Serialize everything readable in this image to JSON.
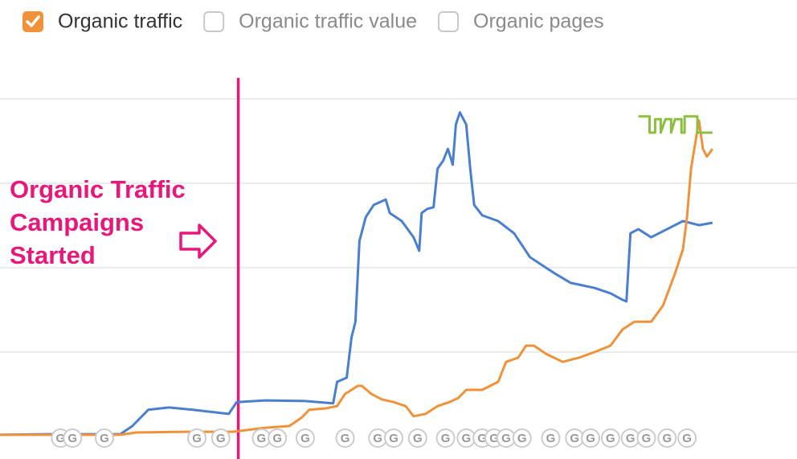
{
  "chart_data": {
    "type": "line",
    "legend": {
      "items": [
        {
          "label": "Organic traffic",
          "checked": true,
          "color": "#f0923a"
        },
        {
          "label": "Organic traffic value",
          "checked": false,
          "color": "#f0923a"
        },
        {
          "label": "Organic pages",
          "checked": false,
          "color": "#f0923a"
        }
      ]
    },
    "xlim": [
      0,
      100
    ],
    "ylim": [
      0,
      100
    ],
    "yticks": [
      25,
      50,
      75,
      100
    ],
    "grid": true,
    "series": [
      {
        "color": "#4a7fcf",
        "x": [
          0,
          6.0,
          15.1,
          16.6,
          18.6,
          21.2,
          24.2,
          28.7,
          29.7,
          33.3,
          38.3,
          41.8,
          42.3,
          43.5,
          44.1,
          44.6,
          45.1,
          45.9,
          46.9,
          48.4,
          48.9,
          50.4,
          51.9,
          52.6,
          52.9,
          53.6,
          54.4,
          54.9,
          55.6,
          56.2,
          56.8,
          57.2,
          57.7,
          58.5,
          59.0,
          59.5,
          60.5,
          62.5,
          64.5,
          66.5,
          69.6,
          71.6,
          74.6,
          76.6,
          78.1,
          78.6,
          79.1,
          80.1,
          81.7,
          83.7,
          85.7,
          87.7,
          89.4
        ],
        "values": [
          0.5,
          0.7,
          0.7,
          3.1,
          7.9,
          8.6,
          7.9,
          6.7,
          10.2,
          10.7,
          10.5,
          9.8,
          16.2,
          17.4,
          29.3,
          34.0,
          57.9,
          65.0,
          68.6,
          70.2,
          66.2,
          63.8,
          59.0,
          55.0,
          66.2,
          67.4,
          67.9,
          79.3,
          81.7,
          85.2,
          80.5,
          92.4,
          96.0,
          92.4,
          79.3,
          68.6,
          65.5,
          63.8,
          60.2,
          53.1,
          48.3,
          45.5,
          44.0,
          42.4,
          40.5,
          40.0,
          60.2,
          61.4,
          59.0,
          61.4,
          63.8,
          62.6,
          63.3
        ]
      },
      {
        "name": "Organic traffic",
        "color": "#f0923a",
        "x": [
          0,
          15.1,
          17.1,
          23.2,
          29.2,
          33.3,
          36.3,
          37.8,
          38.8,
          40.8,
          42.3,
          43.3,
          44.9,
          45.4,
          46.6,
          47.9,
          49.4,
          50.9,
          51.9,
          53.4,
          54.9,
          56.4,
          57.5,
          58.5,
          60.5,
          62.5,
          63.5,
          65.0,
          66.0,
          67.0,
          68.5,
          70.6,
          72.6,
          74.6,
          76.6,
          78.1,
          79.6,
          81.7,
          83.2,
          84.7,
          85.7,
          86.2,
          86.7,
          87.2,
          87.7,
          88.2,
          88.7,
          89.4
        ],
        "values": [
          0.5,
          0.5,
          1.2,
          1.4,
          1.4,
          2.6,
          3.1,
          5.5,
          7.9,
          8.3,
          9.0,
          12.6,
          15.0,
          15.0,
          12.6,
          11.0,
          10.2,
          9.0,
          6.0,
          6.7,
          9.0,
          10.2,
          11.4,
          13.8,
          13.8,
          16.2,
          22.1,
          23.3,
          26.9,
          26.9,
          24.5,
          22.1,
          23.3,
          25.0,
          26.9,
          31.7,
          34.0,
          34.0,
          38.8,
          48.3,
          55.5,
          65.0,
          79.3,
          86.4,
          93.6,
          85.2,
          82.9,
          85.2
        ]
      },
      {
        "color": "#8cbf3f",
        "x": [
          80.1,
          81.5,
          81.5,
          82.2,
          82.2,
          82.9,
          82.9,
          83.5,
          84.2,
          84.2,
          84.7,
          85.5,
          85.5,
          85.9,
          85.9,
          87.5,
          87.5,
          89.4
        ],
        "values": [
          94.8,
          94.8,
          90.0,
          90.0,
          94.0,
          94.0,
          90.0,
          94.0,
          94.0,
          90.0,
          94.0,
          94.0,
          90.0,
          90.0,
          94.8,
          94.8,
          90.0,
          90.0
        ]
      }
    ],
    "annotation": {
      "lines": [
        "Organic Traffic",
        "Campaigns",
        "Started"
      ],
      "x": 29.9,
      "color": "#e8177b"
    },
    "update_markers": {
      "label": "G",
      "x": [
        7.6,
        9.1,
        13.1,
        24.7,
        27.7,
        32.8,
        34.8,
        38.3,
        43.3,
        47.4,
        49.4,
        52.4,
        55.9,
        58.5,
        60.5,
        62.0,
        63.5,
        65.5,
        69.1,
        72.1,
        74.1,
        76.6,
        79.1,
        81.1,
        83.7,
        86.2
      ]
    }
  }
}
